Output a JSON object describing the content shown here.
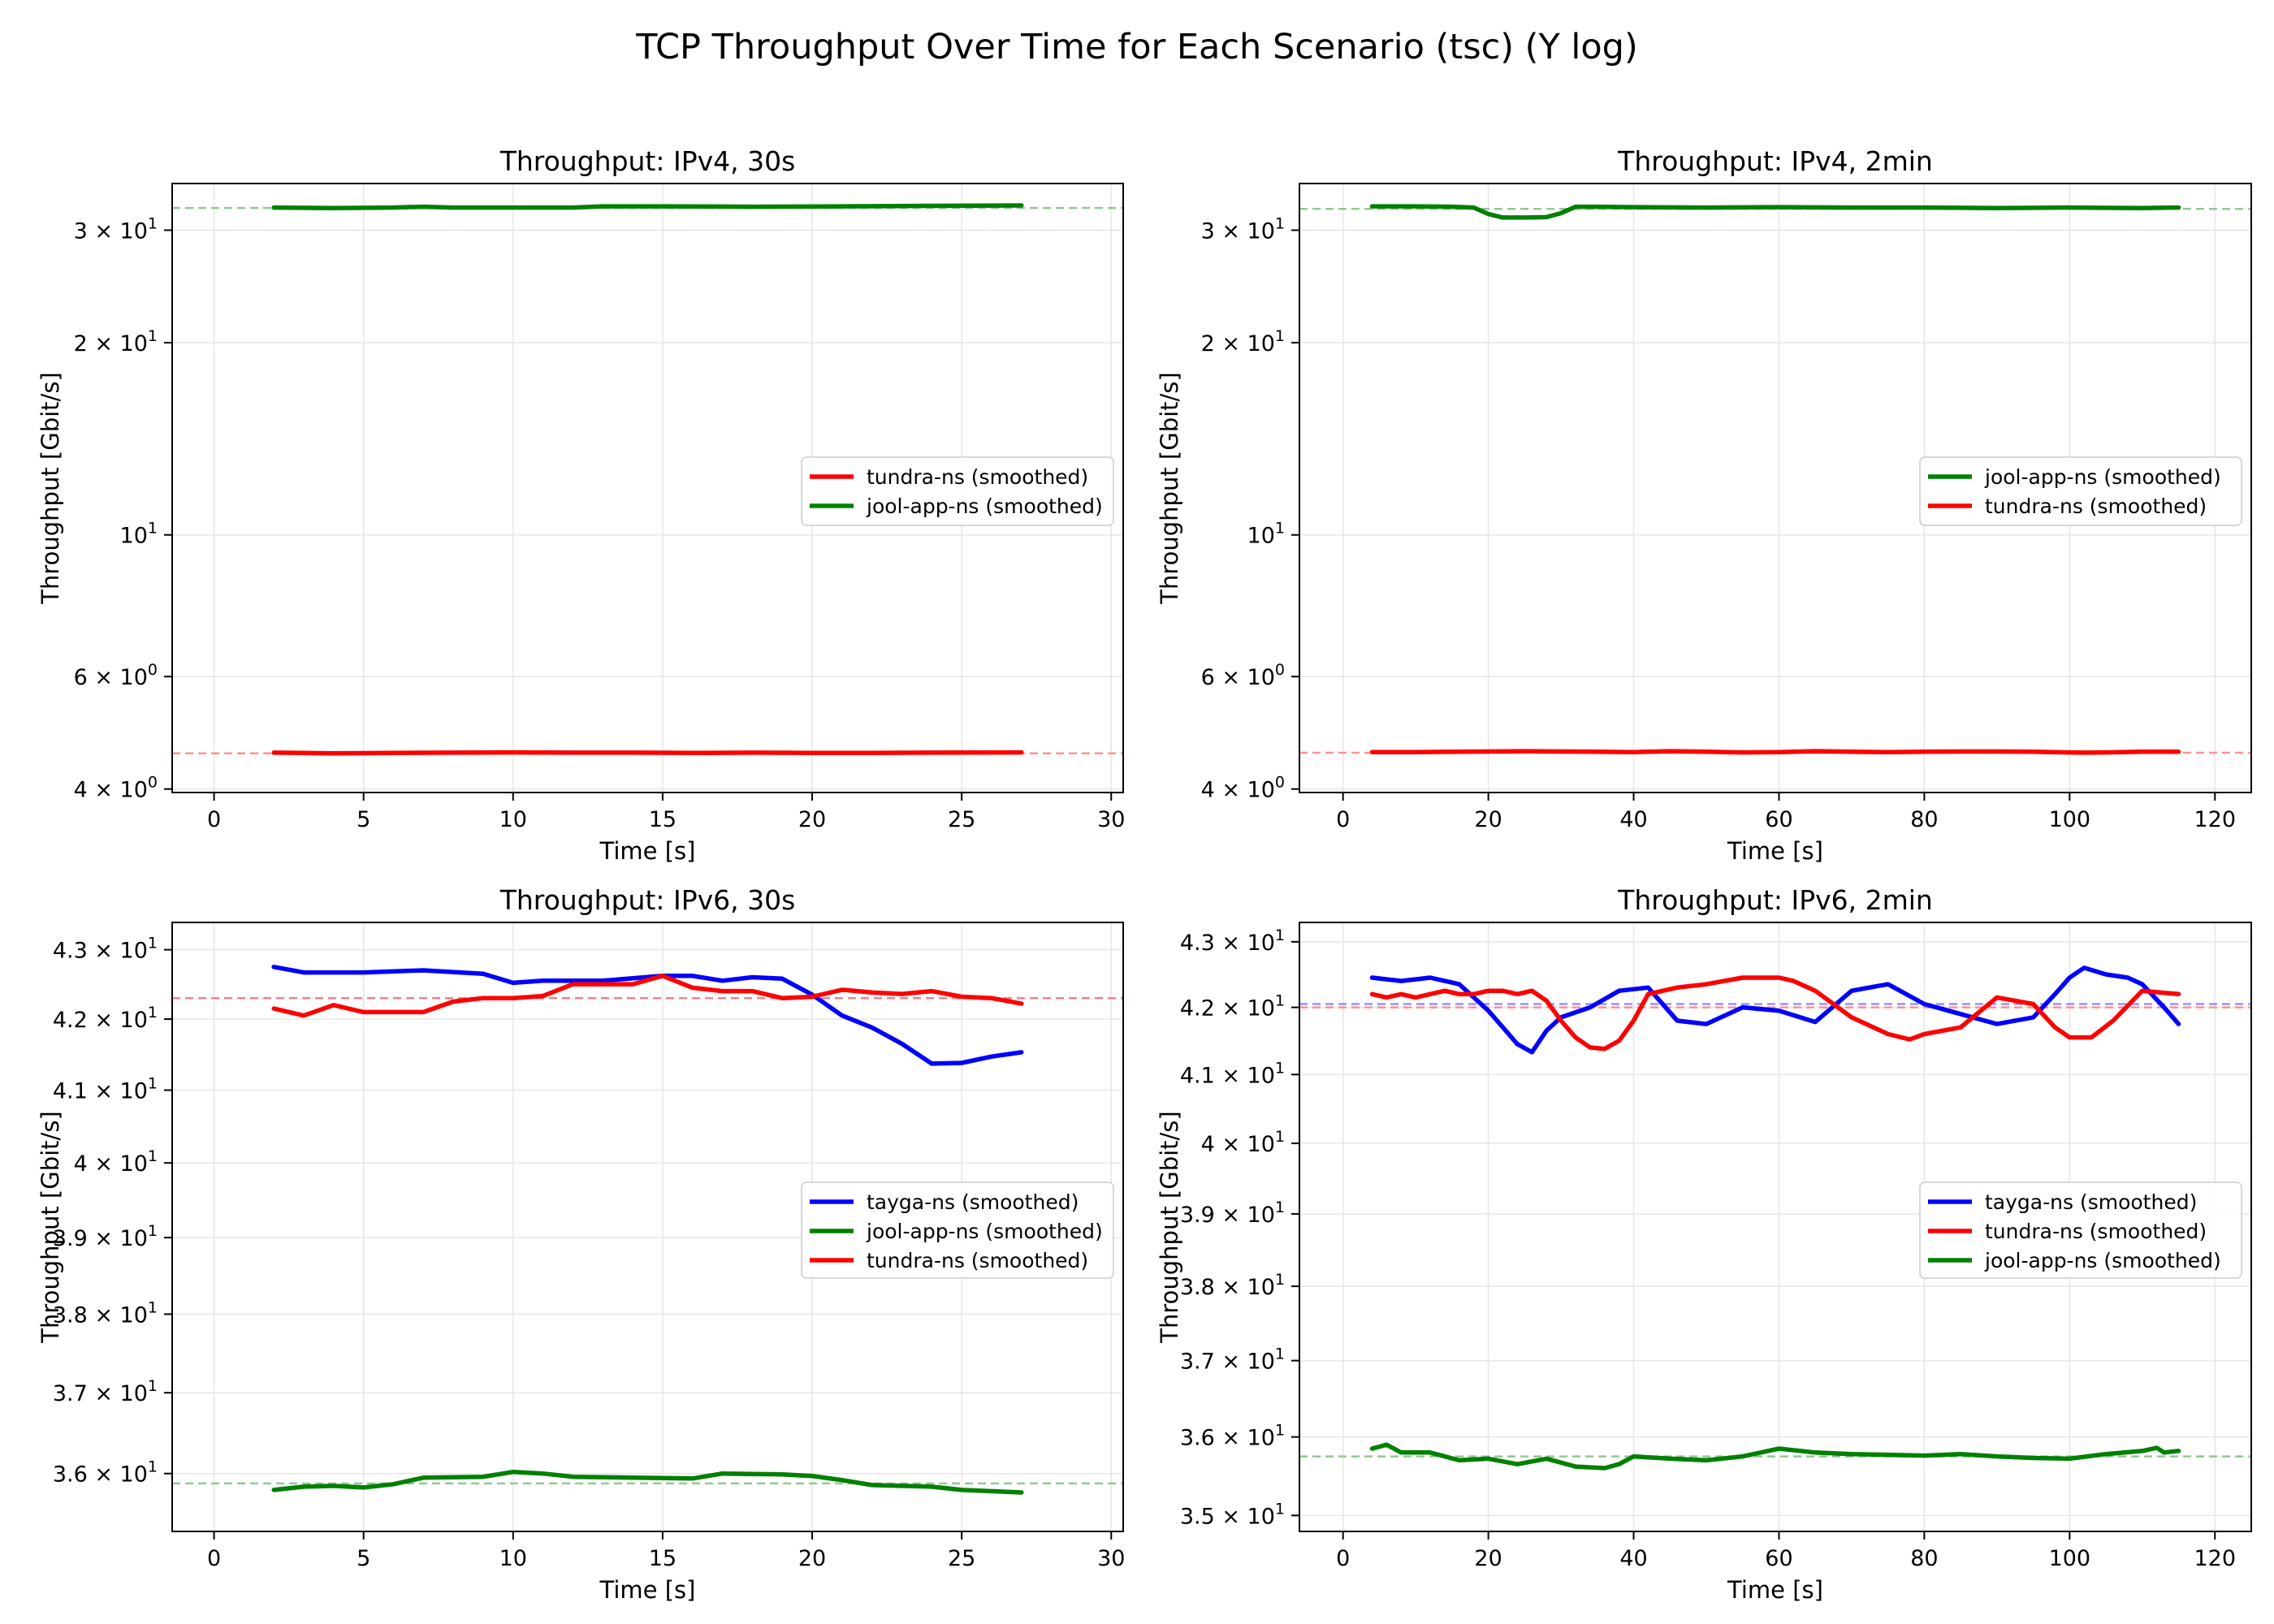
{
  "figure": {
    "title": "TCP Throughput Over Time for Each Scenario (tsc) (Y log)"
  },
  "colors": {
    "tayga": "#0000ff",
    "jool": "#008000",
    "tundra": "#ff0000",
    "grid": "#e6e6e6",
    "mean_tundra": "#ff8080",
    "mean_jool": "#7fbf7f"
  },
  "chart_data": [
    {
      "type": "line",
      "title": "Throughput: IPv4, 30s",
      "xlabel": "Time [s]",
      "ylabel": "Throughput [Gbit/s]",
      "y_scale": "log",
      "xlim": [
        -1.4,
        30.4
      ],
      "ylim": [
        3.95,
        35.5
      ],
      "x_ticks": [
        0,
        5,
        10,
        15,
        20,
        25,
        30
      ],
      "y_ticks": [
        {
          "v": 4,
          "m": "4",
          "e": "0"
        },
        {
          "v": 6,
          "m": "6",
          "e": "0"
        },
        {
          "v": 10,
          "m": "",
          "e": "1"
        },
        {
          "v": 20,
          "m": "2",
          "e": "1"
        },
        {
          "v": 30,
          "m": "3",
          "e": "1"
        }
      ],
      "grid": true,
      "legend": "center-right",
      "series": [
        {
          "name": "tundra-ns (smoothed)",
          "color": "tundra",
          "mean": 4.55,
          "x": [
            2,
            4,
            6,
            8,
            10,
            12,
            14,
            16,
            18,
            20,
            22,
            24,
            27
          ],
          "y": [
            4.56,
            4.55,
            4.555,
            4.56,
            4.565,
            4.56,
            4.56,
            4.555,
            4.56,
            4.555,
            4.555,
            4.56,
            4.565
          ]
        },
        {
          "name": "jool-app-ns (smoothed)",
          "color": "jool",
          "mean": 32.5,
          "x": [
            2,
            4,
            6,
            7,
            8,
            10,
            12,
            13,
            15,
            18,
            21,
            24,
            27
          ],
          "y": [
            32.55,
            32.5,
            32.55,
            32.65,
            32.55,
            32.55,
            32.55,
            32.7,
            32.7,
            32.65,
            32.7,
            32.75,
            32.8
          ]
        }
      ]
    },
    {
      "type": "line",
      "title": "Throughput: IPv4, 2min",
      "xlabel": "Time [s]",
      "ylabel": "Throughput [Gbit/s]",
      "y_scale": "log",
      "xlim": [
        -6,
        125
      ],
      "ylim": [
        3.95,
        35.5
      ],
      "x_ticks": [
        0,
        20,
        40,
        60,
        80,
        100,
        120
      ],
      "y_ticks": [
        {
          "v": 4,
          "m": "4",
          "e": "0"
        },
        {
          "v": 6,
          "m": "6",
          "e": "0"
        },
        {
          "v": 10,
          "m": "",
          "e": "1"
        },
        {
          "v": 20,
          "m": "2",
          "e": "1"
        },
        {
          "v": 30,
          "m": "3",
          "e": "1"
        }
      ],
      "grid": true,
      "legend": "center-right",
      "series": [
        {
          "name": "jool-app-ns (smoothed)",
          "color": "jool",
          "mean": 32.4,
          "x": [
            4,
            10,
            15,
            18,
            20,
            22,
            25,
            28,
            30,
            32,
            35,
            40,
            50,
            60,
            70,
            80,
            90,
            100,
            110,
            115
          ],
          "y": [
            32.7,
            32.7,
            32.65,
            32.55,
            31.8,
            31.4,
            31.4,
            31.45,
            31.9,
            32.65,
            32.65,
            32.6,
            32.55,
            32.6,
            32.55,
            32.55,
            32.5,
            32.55,
            32.5,
            32.55
          ]
        },
        {
          "name": "tundra-ns (smoothed)",
          "color": "tundra",
          "mean": 4.56,
          "x": [
            4,
            10,
            20,
            25,
            30,
            35,
            40,
            45,
            50,
            55,
            60,
            65,
            70,
            75,
            80,
            85,
            90,
            95,
            100,
            102,
            105,
            110,
            115
          ],
          "y": [
            4.57,
            4.57,
            4.58,
            4.585,
            4.58,
            4.575,
            4.57,
            4.585,
            4.575,
            4.565,
            4.57,
            4.585,
            4.575,
            4.57,
            4.575,
            4.58,
            4.58,
            4.575,
            4.565,
            4.56,
            4.565,
            4.575,
            4.575
          ]
        }
      ]
    },
    {
      "type": "line",
      "title": "Throughput: IPv6, 30s",
      "xlabel": "Time [s]",
      "ylabel": "Throughput [Gbit/s]",
      "y_scale": "log",
      "xlim": [
        -1.4,
        30.4
      ],
      "ylim": [
        35.3,
        43.4
      ],
      "x_ticks": [
        0,
        5,
        10,
        15,
        20,
        25,
        30
      ],
      "y_ticks": [
        {
          "v": 36,
          "m": "3.6",
          "e": "1"
        },
        {
          "v": 37,
          "m": "3.7",
          "e": "1"
        },
        {
          "v": 38,
          "m": "3.8",
          "e": "1"
        },
        {
          "v": 39,
          "m": "3.9",
          "e": "1"
        },
        {
          "v": 40,
          "m": "4",
          "e": "1"
        },
        {
          "v": 41,
          "m": "4.1",
          "e": "1"
        },
        {
          "v": 42,
          "m": "4.2",
          "e": "1"
        },
        {
          "v": 43,
          "m": "4.3",
          "e": "1"
        }
      ],
      "grid": true,
      "legend": "center-right",
      "series": [
        {
          "name": "tayga-ns (smoothed)",
          "color": "tayga",
          "mean": 42.3,
          "x": [
            2,
            3,
            5,
            7,
            9,
            10,
            11,
            13,
            15,
            16,
            17,
            18,
            19,
            20,
            21,
            22,
            23,
            24,
            25,
            26,
            27
          ],
          "y": [
            42.75,
            42.67,
            42.67,
            42.7,
            42.65,
            42.52,
            42.55,
            42.55,
            42.62,
            42.62,
            42.55,
            42.6,
            42.58,
            42.35,
            42.05,
            41.88,
            41.65,
            41.37,
            41.38,
            41.47,
            41.53
          ]
        },
        {
          "name": "jool-app-ns (smoothed)",
          "color": "jool",
          "mean": 35.88,
          "x": [
            2,
            3,
            4,
            5,
            6,
            7,
            9,
            10,
            11,
            12,
            14,
            16,
            17,
            19,
            20,
            21,
            22,
            23,
            24,
            25,
            27
          ],
          "y": [
            35.8,
            35.84,
            35.85,
            35.83,
            35.87,
            35.95,
            35.96,
            36.02,
            36.0,
            35.96,
            35.95,
            35.94,
            36.0,
            35.99,
            35.97,
            35.92,
            35.86,
            35.85,
            35.84,
            35.8,
            35.77
          ]
        },
        {
          "name": "tundra-ns (smoothed)",
          "color": "tundra",
          "mean": 42.3,
          "x": [
            2,
            3,
            4,
            5,
            6,
            7,
            8,
            9,
            10,
            11,
            12,
            14,
            15,
            16,
            17,
            18,
            19,
            20,
            21,
            22,
            23,
            24,
            25,
            26,
            27
          ],
          "y": [
            42.15,
            42.05,
            42.2,
            42.1,
            42.1,
            42.1,
            42.25,
            42.3,
            42.3,
            42.33,
            42.5,
            42.5,
            42.62,
            42.45,
            42.4,
            42.4,
            42.3,
            42.32,
            42.42,
            42.38,
            42.36,
            42.4,
            42.32,
            42.3,
            42.22
          ]
        }
      ]
    },
    {
      "type": "line",
      "title": "Throughput: IPv6, 2min",
      "xlabel": "Time [s]",
      "ylabel": "Throughput [Gbit/s]",
      "y_scale": "log",
      "xlim": [
        -6,
        125
      ],
      "ylim": [
        34.8,
        43.3
      ],
      "x_ticks": [
        0,
        20,
        40,
        60,
        80,
        100,
        120
      ],
      "y_ticks": [
        {
          "v": 35,
          "m": "3.5",
          "e": "1"
        },
        {
          "v": 36,
          "m": "3.6",
          "e": "1"
        },
        {
          "v": 37,
          "m": "3.7",
          "e": "1"
        },
        {
          "v": 38,
          "m": "3.8",
          "e": "1"
        },
        {
          "v": 39,
          "m": "3.9",
          "e": "1"
        },
        {
          "v": 40,
          "m": "4",
          "e": "1"
        },
        {
          "v": 41,
          "m": "4.1",
          "e": "1"
        },
        {
          "v": 42,
          "m": "4.2",
          "e": "1"
        },
        {
          "v": 43,
          "m": "4.3",
          "e": "1"
        }
      ],
      "grid": true,
      "legend": "center-right",
      "series": [
        {
          "name": "tayga-ns (smoothed)",
          "color": "tayga",
          "mean": 42.05,
          "x": [
            4,
            8,
            12,
            16,
            18,
            20,
            22,
            24,
            26,
            28,
            30,
            34,
            38,
            42,
            46,
            50,
            55,
            60,
            65,
            70,
            75,
            80,
            85,
            90,
            95,
            98,
            100,
            102,
            105,
            108,
            110,
            113,
            115
          ],
          "y": [
            42.45,
            42.4,
            42.45,
            42.35,
            42.15,
            41.95,
            41.7,
            41.45,
            41.33,
            41.65,
            41.85,
            42.0,
            42.25,
            42.3,
            41.8,
            41.75,
            42.0,
            41.95,
            41.78,
            42.25,
            42.35,
            42.05,
            41.9,
            41.75,
            41.85,
            42.2,
            42.45,
            42.6,
            42.5,
            42.45,
            42.35,
            42.0,
            41.75
          ]
        },
        {
          "name": "tundra-ns (smoothed)",
          "color": "tundra",
          "mean": 42.0,
          "x": [
            4,
            6,
            8,
            10,
            12,
            14,
            16,
            18,
            20,
            22,
            24,
            26,
            28,
            30,
            32,
            34,
            36,
            38,
            40,
            42,
            46,
            50,
            55,
            60,
            62,
            65,
            70,
            75,
            78,
            80,
            85,
            90,
            95,
            98,
            100,
            103,
            106,
            110,
            115
          ],
          "y": [
            42.2,
            42.15,
            42.2,
            42.15,
            42.2,
            42.25,
            42.2,
            42.2,
            42.25,
            42.25,
            42.2,
            42.25,
            42.1,
            41.8,
            41.55,
            41.4,
            41.38,
            41.5,
            41.8,
            42.2,
            42.3,
            42.35,
            42.45,
            42.45,
            42.4,
            42.25,
            41.85,
            41.6,
            41.52,
            41.6,
            41.7,
            42.15,
            42.05,
            41.7,
            41.55,
            41.55,
            41.8,
            42.25,
            42.2
          ]
        },
        {
          "name": "jool-app-ns (smoothed)",
          "color": "jool",
          "mean": 35.75,
          "x": [
            4,
            6,
            8,
            12,
            16,
            20,
            24,
            28,
            32,
            36,
            38,
            40,
            45,
            50,
            55,
            60,
            65,
            70,
            75,
            80,
            85,
            90,
            95,
            100,
            105,
            110,
            112,
            113,
            115
          ],
          "y": [
            35.85,
            35.9,
            35.8,
            35.8,
            35.7,
            35.72,
            35.65,
            35.72,
            35.62,
            35.6,
            35.65,
            35.75,
            35.72,
            35.7,
            35.75,
            35.85,
            35.8,
            35.78,
            35.77,
            35.76,
            35.78,
            35.75,
            35.73,
            35.72,
            35.78,
            35.82,
            35.86,
            35.8,
            35.82
          ]
        }
      ]
    }
  ]
}
